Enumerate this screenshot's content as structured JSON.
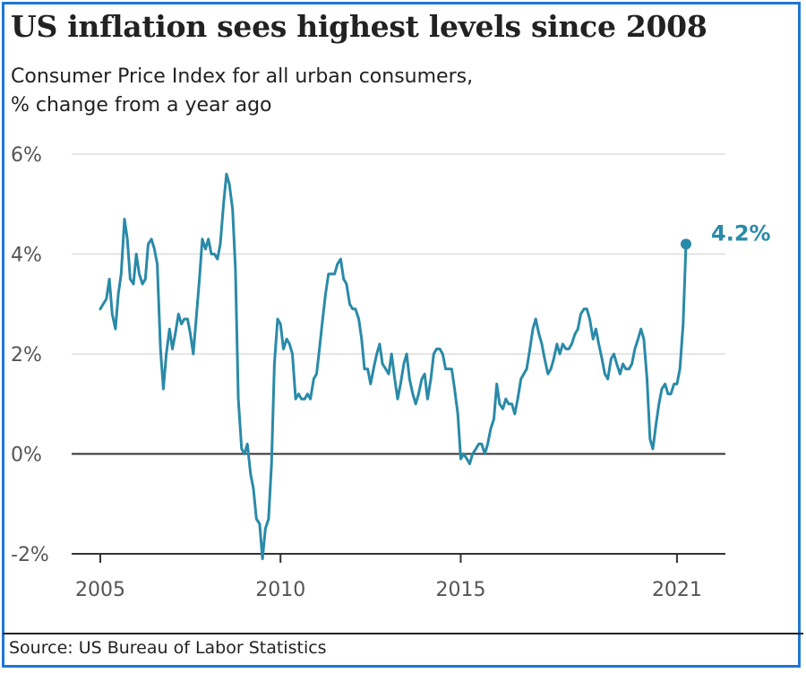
{
  "header": {
    "title": "US inflation sees highest levels since 2008",
    "subtitle_line1": "Consumer Price Index for all urban consumers,",
    "subtitle_line2": "% change from a year ago"
  },
  "footer": {
    "source": "Source: US Bureau of Labor Statistics"
  },
  "colors": {
    "line": "#2a8aa8",
    "accent_border": "#1f77d4",
    "grid": "#dddddd",
    "zero_line": "#333333",
    "text": "#222222"
  },
  "chart_data": {
    "type": "line",
    "title": "US inflation sees highest levels since 2008",
    "subtitle": "Consumer Price Index for all urban consumers, % change from a year ago",
    "xlabel": "",
    "ylabel": "",
    "xlim": [
      2005,
      2021.6
    ],
    "ylim": [
      -2,
      6
    ],
    "yticks": [
      -2,
      0,
      2,
      4,
      6
    ],
    "ytick_labels": [
      "-2%",
      "0%",
      "2%",
      "4%",
      "6%"
    ],
    "xticks": [
      2005,
      2010,
      2015,
      2021
    ],
    "xtick_labels": [
      "2005",
      "2010",
      "2015",
      "2021"
    ],
    "grid": true,
    "end_label": "4.2%",
    "series": [
      {
        "points": [
          [
            2005.0,
            2.9
          ],
          [
            2005.08,
            3.0
          ],
          [
            2005.17,
            3.1
          ],
          [
            2005.25,
            3.5
          ],
          [
            2005.33,
            2.8
          ],
          [
            2005.42,
            2.5
          ],
          [
            2005.5,
            3.2
          ],
          [
            2005.58,
            3.6
          ],
          [
            2005.67,
            4.7
          ],
          [
            2005.75,
            4.3
          ],
          [
            2005.83,
            3.5
          ],
          [
            2005.92,
            3.4
          ],
          [
            2006.0,
            4.0
          ],
          [
            2006.08,
            3.6
          ],
          [
            2006.17,
            3.4
          ],
          [
            2006.25,
            3.5
          ],
          [
            2006.33,
            4.2
          ],
          [
            2006.42,
            4.3
          ],
          [
            2006.5,
            4.1
          ],
          [
            2006.58,
            3.8
          ],
          [
            2006.67,
            2.1
          ],
          [
            2006.75,
            1.3
          ],
          [
            2006.83,
            2.0
          ],
          [
            2006.92,
            2.5
          ],
          [
            2007.0,
            2.1
          ],
          [
            2007.08,
            2.4
          ],
          [
            2007.17,
            2.8
          ],
          [
            2007.25,
            2.6
          ],
          [
            2007.33,
            2.7
          ],
          [
            2007.42,
            2.7
          ],
          [
            2007.5,
            2.4
          ],
          [
            2007.58,
            2.0
          ],
          [
            2007.67,
            2.8
          ],
          [
            2007.75,
            3.5
          ],
          [
            2007.83,
            4.3
          ],
          [
            2007.92,
            4.1
          ],
          [
            2008.0,
            4.3
          ],
          [
            2008.08,
            4.0
          ],
          [
            2008.17,
            4.0
          ],
          [
            2008.25,
            3.9
          ],
          [
            2008.33,
            4.2
          ],
          [
            2008.42,
            5.0
          ],
          [
            2008.5,
            5.6
          ],
          [
            2008.58,
            5.4
          ],
          [
            2008.67,
            4.9
          ],
          [
            2008.75,
            3.7
          ],
          [
            2008.83,
            1.1
          ],
          [
            2008.92,
            0.1
          ],
          [
            2009.0,
            0.0
          ],
          [
            2009.08,
            0.2
          ],
          [
            2009.17,
            -0.4
          ],
          [
            2009.25,
            -0.7
          ],
          [
            2009.33,
            -1.3
          ],
          [
            2009.42,
            -1.4
          ],
          [
            2009.5,
            -2.1
          ],
          [
            2009.58,
            -1.5
          ],
          [
            2009.67,
            -1.3
          ],
          [
            2009.75,
            -0.2
          ],
          [
            2009.83,
            1.8
          ],
          [
            2009.92,
            2.7
          ],
          [
            2010.0,
            2.6
          ],
          [
            2010.08,
            2.1
          ],
          [
            2010.17,
            2.3
          ],
          [
            2010.25,
            2.2
          ],
          [
            2010.33,
            2.0
          ],
          [
            2010.42,
            1.1
          ],
          [
            2010.5,
            1.2
          ],
          [
            2010.58,
            1.1
          ],
          [
            2010.67,
            1.1
          ],
          [
            2010.75,
            1.2
          ],
          [
            2010.83,
            1.1
          ],
          [
            2010.92,
            1.5
          ],
          [
            2011.0,
            1.6
          ],
          [
            2011.08,
            2.1
          ],
          [
            2011.17,
            2.7
          ],
          [
            2011.25,
            3.2
          ],
          [
            2011.33,
            3.6
          ],
          [
            2011.42,
            3.6
          ],
          [
            2011.5,
            3.6
          ],
          [
            2011.58,
            3.8
          ],
          [
            2011.67,
            3.9
          ],
          [
            2011.75,
            3.5
          ],
          [
            2011.83,
            3.4
          ],
          [
            2011.92,
            3.0
          ],
          [
            2012.0,
            2.9
          ],
          [
            2012.08,
            2.9
          ],
          [
            2012.17,
            2.7
          ],
          [
            2012.25,
            2.3
          ],
          [
            2012.33,
            1.7
          ],
          [
            2012.42,
            1.7
          ],
          [
            2012.5,
            1.4
          ],
          [
            2012.58,
            1.7
          ],
          [
            2012.67,
            2.0
          ],
          [
            2012.75,
            2.2
          ],
          [
            2012.83,
            1.8
          ],
          [
            2012.92,
            1.7
          ],
          [
            2013.0,
            1.6
          ],
          [
            2013.08,
            2.0
          ],
          [
            2013.17,
            1.5
          ],
          [
            2013.25,
            1.1
          ],
          [
            2013.33,
            1.4
          ],
          [
            2013.42,
            1.8
          ],
          [
            2013.5,
            2.0
          ],
          [
            2013.58,
            1.5
          ],
          [
            2013.67,
            1.2
          ],
          [
            2013.75,
            1.0
          ],
          [
            2013.83,
            1.2
          ],
          [
            2013.92,
            1.5
          ],
          [
            2014.0,
            1.6
          ],
          [
            2014.08,
            1.1
          ],
          [
            2014.17,
            1.5
          ],
          [
            2014.25,
            2.0
          ],
          [
            2014.33,
            2.1
          ],
          [
            2014.42,
            2.1
          ],
          [
            2014.5,
            2.0
          ],
          [
            2014.58,
            1.7
          ],
          [
            2014.67,
            1.7
          ],
          [
            2014.75,
            1.7
          ],
          [
            2014.83,
            1.3
          ],
          [
            2014.92,
            0.8
          ],
          [
            2015.0,
            -0.1
          ],
          [
            2015.08,
            0.0
          ],
          [
            2015.17,
            -0.1
          ],
          [
            2015.25,
            -0.2
          ],
          [
            2015.33,
            0.0
          ],
          [
            2015.42,
            0.1
          ],
          [
            2015.5,
            0.2
          ],
          [
            2015.58,
            0.2
          ],
          [
            2015.67,
            0.0
          ],
          [
            2015.75,
            0.2
          ],
          [
            2015.83,
            0.5
          ],
          [
            2015.92,
            0.7
          ],
          [
            2016.0,
            1.4
          ],
          [
            2016.08,
            1.0
          ],
          [
            2016.17,
            0.9
          ],
          [
            2016.25,
            1.1
          ],
          [
            2016.33,
            1.0
          ],
          [
            2016.42,
            1.0
          ],
          [
            2016.5,
            0.8
          ],
          [
            2016.58,
            1.1
          ],
          [
            2016.67,
            1.5
          ],
          [
            2016.75,
            1.6
          ],
          [
            2016.83,
            1.7
          ],
          [
            2016.92,
            2.1
          ],
          [
            2017.0,
            2.5
          ],
          [
            2017.08,
            2.7
          ],
          [
            2017.17,
            2.4
          ],
          [
            2017.25,
            2.2
          ],
          [
            2017.33,
            1.9
          ],
          [
            2017.42,
            1.6
          ],
          [
            2017.5,
            1.7
          ],
          [
            2017.58,
            1.9
          ],
          [
            2017.67,
            2.2
          ],
          [
            2017.75,
            2.0
          ],
          [
            2017.83,
            2.2
          ],
          [
            2017.92,
            2.1
          ],
          [
            2018.0,
            2.1
          ],
          [
            2018.08,
            2.2
          ],
          [
            2018.17,
            2.4
          ],
          [
            2018.25,
            2.5
          ],
          [
            2018.33,
            2.8
          ],
          [
            2018.42,
            2.9
          ],
          [
            2018.5,
            2.9
          ],
          [
            2018.58,
            2.7
          ],
          [
            2018.67,
            2.3
          ],
          [
            2018.75,
            2.5
          ],
          [
            2018.83,
            2.2
          ],
          [
            2018.92,
            1.9
          ],
          [
            2019.0,
            1.6
          ],
          [
            2019.08,
            1.5
          ],
          [
            2019.17,
            1.9
          ],
          [
            2019.25,
            2.0
          ],
          [
            2019.33,
            1.8
          ],
          [
            2019.42,
            1.6
          ],
          [
            2019.5,
            1.8
          ],
          [
            2019.58,
            1.7
          ],
          [
            2019.67,
            1.7
          ],
          [
            2019.75,
            1.8
          ],
          [
            2019.83,
            2.1
          ],
          [
            2019.92,
            2.3
          ],
          [
            2020.0,
            2.5
          ],
          [
            2020.08,
            2.3
          ],
          [
            2020.17,
            1.5
          ],
          [
            2020.25,
            0.3
          ],
          [
            2020.33,
            0.1
          ],
          [
            2020.42,
            0.6
          ],
          [
            2020.5,
            1.0
          ],
          [
            2020.58,
            1.3
          ],
          [
            2020.67,
            1.4
          ],
          [
            2020.75,
            1.2
          ],
          [
            2020.83,
            1.2
          ],
          [
            2020.92,
            1.4
          ],
          [
            2021.0,
            1.4
          ],
          [
            2021.08,
            1.7
          ],
          [
            2021.17,
            2.6
          ],
          [
            2021.25,
            4.2
          ]
        ]
      }
    ]
  }
}
